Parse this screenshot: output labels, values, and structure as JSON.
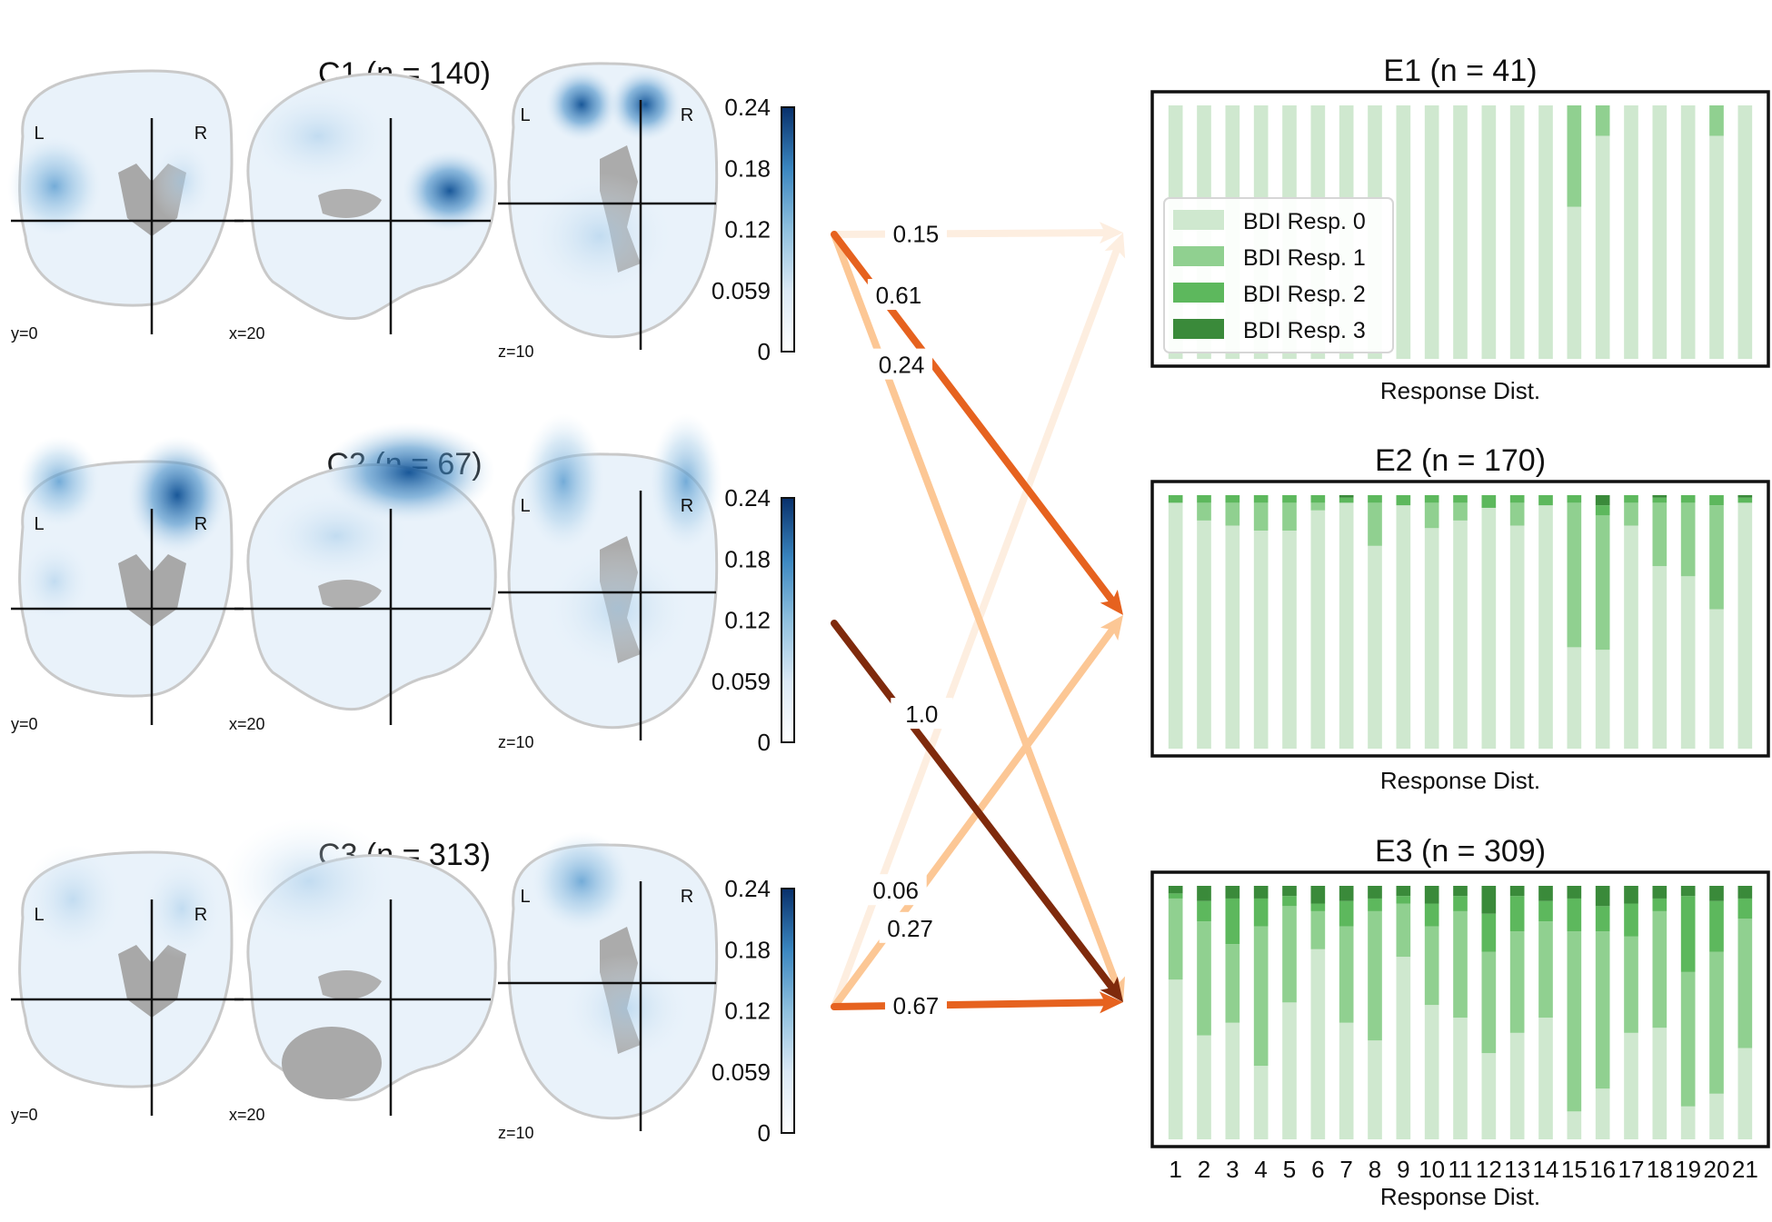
{
  "colorbar": {
    "ticks": [
      "0.24",
      "0.18",
      "0.12",
      "0.059",
      "0"
    ],
    "range": [
      0,
      0.24
    ],
    "colormap": [
      "#ffffff",
      "#c6dbef",
      "#6baed6",
      "#2171b5",
      "#08306b"
    ]
  },
  "clusters": [
    {
      "title": "C1 (n = 140)",
      "views": {
        "coronal": "y=0",
        "sagittal": "x=20",
        "axial": "z=10"
      },
      "left": "L",
      "right": "R"
    },
    {
      "title": "C2 (n = 67)",
      "views": {
        "coronal": "y=0",
        "sagittal": "x=20",
        "axial": "z=10"
      },
      "left": "L",
      "right": "R"
    },
    {
      "title": "C3 (n = 313)",
      "views": {
        "coronal": "y=0",
        "sagittal": "x=20",
        "axial": "z=10"
      },
      "left": "L",
      "right": "R"
    }
  ],
  "flows": {
    "colors": {
      "low": "#fdeee0",
      "mid": "#fcc795",
      "high": "#e6621f",
      "max": "#7f2a0c"
    },
    "edges": [
      {
        "from": 0,
        "to": 0,
        "weight": 0.15,
        "label": "0.15"
      },
      {
        "from": 0,
        "to": 1,
        "weight": 0.61,
        "label": "0.61"
      },
      {
        "from": 0,
        "to": 2,
        "weight": 0.24,
        "label": "0.24"
      },
      {
        "from": 1,
        "to": 2,
        "weight": 1.0,
        "label": "1.0"
      },
      {
        "from": 2,
        "to": 0,
        "weight": 0.06,
        "label": "0.06"
      },
      {
        "from": 2,
        "to": 1,
        "weight": 0.27,
        "label": "0.27"
      },
      {
        "from": 2,
        "to": 2,
        "weight": 0.67,
        "label": "0.67"
      }
    ]
  },
  "chart_data": [
    {
      "type": "bar",
      "title": "E1 (n = 41)",
      "xlabel": "Response Dist.",
      "ylim": [
        0,
        1
      ],
      "legend": {
        "placement": "center-left",
        "entries": [
          "BDI Resp. 0",
          "BDI Resp. 1",
          "BDI Resp. 2",
          "BDI Resp. 3"
        ]
      },
      "categories": [
        "1",
        "2",
        "3",
        "4",
        "5",
        "6",
        "7",
        "8",
        "9",
        "10",
        "11",
        "12",
        "13",
        "14",
        "15",
        "16",
        "17",
        "18",
        "19",
        "20",
        "21"
      ],
      "series": [
        {
          "name": "BDI Resp. 0",
          "color": "#cfe8cf",
          "values": [
            1,
            1,
            1,
            1,
            1,
            1,
            1,
            1,
            1,
            1,
            1,
            1,
            1,
            1,
            0.6,
            0.88,
            1,
            1,
            1,
            0.88,
            1
          ]
        },
        {
          "name": "BDI Resp. 1",
          "color": "#90d090",
          "values": [
            0,
            0,
            0,
            0,
            0,
            0,
            0,
            0,
            0,
            0,
            0,
            0,
            0,
            0,
            0.4,
            0.12,
            0,
            0,
            0,
            0.12,
            0
          ]
        },
        {
          "name": "BDI Resp. 2",
          "color": "#5db85d",
          "values": [
            0,
            0,
            0,
            0,
            0,
            0,
            0,
            0,
            0,
            0,
            0,
            0,
            0,
            0,
            0,
            0,
            0,
            0,
            0,
            0,
            0
          ]
        },
        {
          "name": "BDI Resp. 3",
          "color": "#3a8a3a",
          "values": [
            0,
            0,
            0,
            0,
            0,
            0,
            0,
            0,
            0,
            0,
            0,
            0,
            0,
            0,
            0,
            0,
            0,
            0,
            0,
            0,
            0
          ]
        }
      ]
    },
    {
      "type": "bar",
      "title": "E2 (n = 170)",
      "xlabel": "Response Dist.",
      "ylim": [
        0,
        1
      ],
      "categories": [
        "1",
        "2",
        "3",
        "4",
        "5",
        "6",
        "7",
        "8",
        "9",
        "10",
        "11",
        "12",
        "13",
        "14",
        "15",
        "16",
        "17",
        "18",
        "19",
        "20",
        "21"
      ],
      "series": [
        {
          "name": "BDI Resp. 0",
          "color": "#cfe8cf",
          "values": [
            0.97,
            0.9,
            0.88,
            0.86,
            0.86,
            0.94,
            0.97,
            0.8,
            0.96,
            0.87,
            0.9,
            0.95,
            0.88,
            0.96,
            0.4,
            0.39,
            0.88,
            0.72,
            0.68,
            0.55,
            0.97
          ]
        },
        {
          "name": "BDI Resp. 1",
          "color": "#90d090",
          "values": [
            0,
            0.07,
            0.09,
            0.11,
            0.11,
            0.03,
            0,
            0.17,
            0,
            0.1,
            0.07,
            0,
            0.09,
            0,
            0.57,
            0.53,
            0.09,
            0.25,
            0.29,
            0.41,
            0
          ]
        },
        {
          "name": "BDI Resp. 2",
          "color": "#5db85d",
          "values": [
            0.03,
            0.03,
            0.03,
            0.03,
            0.03,
            0.03,
            0.02,
            0.03,
            0.04,
            0.03,
            0.03,
            0.05,
            0.03,
            0.04,
            0.03,
            0.04,
            0.03,
            0.02,
            0.03,
            0.04,
            0.02
          ]
        },
        {
          "name": "BDI Resp. 3",
          "color": "#3a8a3a",
          "values": [
            0,
            0,
            0,
            0,
            0,
            0,
            0.01,
            0,
            0,
            0,
            0,
            0,
            0,
            0,
            0,
            0.04,
            0,
            0.01,
            0,
            0,
            0.01
          ]
        }
      ]
    },
    {
      "type": "bar",
      "title": "E3 (n = 309)",
      "xlabel": "Response Dist.",
      "ylim": [
        0,
        1
      ],
      "categories": [
        "1",
        "2",
        "3",
        "4",
        "5",
        "6",
        "7",
        "8",
        "9",
        "10",
        "11",
        "12",
        "13",
        "14",
        "15",
        "16",
        "17",
        "18",
        "19",
        "20",
        "21"
      ],
      "series": [
        {
          "name": "BDI Resp. 0",
          "color": "#cfe8cf",
          "values": [
            0.63,
            0.41,
            0.46,
            0.29,
            0.54,
            0.75,
            0.46,
            0.39,
            0.72,
            0.53,
            0.48,
            0.34,
            0.42,
            0.48,
            0.11,
            0.2,
            0.42,
            0.44,
            0.13,
            0.18,
            0.36
          ]
        },
        {
          "name": "BDI Resp. 1",
          "color": "#90d090",
          "values": [
            0.32,
            0.45,
            0.31,
            0.55,
            0.38,
            0.15,
            0.38,
            0.51,
            0.21,
            0.31,
            0.42,
            0.4,
            0.4,
            0.38,
            0.71,
            0.62,
            0.38,
            0.46,
            0.53,
            0.56,
            0.51
          ]
        },
        {
          "name": "BDI Resp. 2",
          "color": "#5db85d",
          "values": [
            0.02,
            0.08,
            0.18,
            0.11,
            0.04,
            0.03,
            0.1,
            0.05,
            0.03,
            0.09,
            0.06,
            0.15,
            0.14,
            0.08,
            0.13,
            0.1,
            0.13,
            0.05,
            0.3,
            0.2,
            0.08
          ]
        },
        {
          "name": "BDI Resp. 3",
          "color": "#3a8a3a",
          "values": [
            0.03,
            0.06,
            0.05,
            0.05,
            0.04,
            0.07,
            0.06,
            0.05,
            0.04,
            0.07,
            0.04,
            0.11,
            0.04,
            0.06,
            0.05,
            0.08,
            0.07,
            0.05,
            0.04,
            0.06,
            0.05
          ]
        }
      ]
    }
  ]
}
